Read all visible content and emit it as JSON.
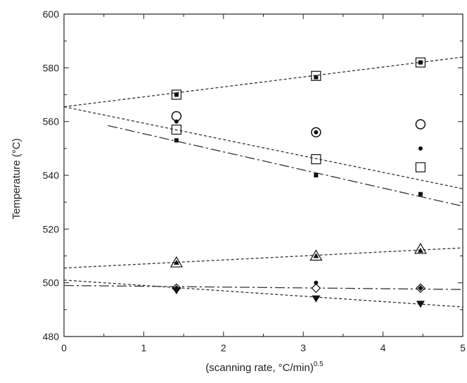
{
  "chart_data": {
    "type": "scatter",
    "title": "",
    "xlabel_main": "(scanning rate, °C/min)",
    "xlabel_sup": "0.5",
    "ylabel": "Temperature (°C)",
    "xlim": [
      0,
      5
    ],
    "ylim": [
      480,
      600
    ],
    "xticks": [
      "0",
      "1",
      "2",
      "3",
      "4",
      "5"
    ],
    "yticks": [
      "480",
      "500",
      "520",
      "540",
      "560",
      "580",
      "600"
    ],
    "grid": false,
    "legend": "none",
    "series": [
      {
        "marker": "open-square",
        "points": [
          [
            1.41,
            570
          ],
          [
            3.16,
            577
          ],
          [
            4.47,
            582
          ]
        ]
      },
      {
        "marker": "filled-square",
        "points": [
          [
            1.41,
            570
          ],
          [
            3.16,
            576.5
          ],
          [
            4.47,
            582
          ],
          [
            1.41,
            553
          ],
          [
            3.16,
            540
          ],
          [
            4.47,
            533
          ]
        ]
      },
      {
        "marker": "open-circle",
        "points": [
          [
            1.41,
            562
          ],
          [
            3.16,
            556
          ],
          [
            4.47,
            559
          ]
        ]
      },
      {
        "marker": "filled-circle",
        "points": [
          [
            1.41,
            560
          ],
          [
            3.16,
            556
          ],
          [
            4.47,
            550
          ],
          [
            3.16,
            500
          ]
        ]
      },
      {
        "marker": "open-square",
        "points": [
          [
            1.41,
            557
          ],
          [
            3.16,
            546
          ],
          [
            4.47,
            543
          ]
        ]
      },
      {
        "marker": "open-triangle",
        "points": [
          [
            1.41,
            507.5
          ],
          [
            3.16,
            510
          ],
          [
            4.47,
            512.5
          ]
        ]
      },
      {
        "marker": "filled-triangle",
        "points": [
          [
            1.41,
            507.5
          ],
          [
            3.16,
            510
          ],
          [
            4.47,
            512
          ]
        ]
      },
      {
        "marker": "open-diamond",
        "points": [
          [
            1.41,
            498
          ],
          [
            3.16,
            498
          ],
          [
            4.47,
            498
          ]
        ]
      },
      {
        "marker": "filled-diamond",
        "points": [
          [
            1.41,
            498
          ],
          [
            4.47,
            498
          ]
        ]
      },
      {
        "marker": "filled-down-triangle",
        "points": [
          [
            1.41,
            497
          ],
          [
            3.16,
            494
          ],
          [
            4.47,
            492
          ]
        ]
      }
    ],
    "lines": [
      {
        "style": "dotted",
        "points": [
          [
            0,
            565.5
          ],
          [
            5,
            584
          ]
        ]
      },
      {
        "style": "dotted",
        "points": [
          [
            0,
            565.5
          ],
          [
            5,
            535
          ]
        ]
      },
      {
        "style": "dashed",
        "points": [
          [
            0.55,
            558.5
          ],
          [
            5,
            528.5
          ]
        ]
      },
      {
        "style": "dotted",
        "points": [
          [
            0,
            505.5
          ],
          [
            5,
            513
          ]
        ]
      },
      {
        "style": "dashed",
        "points": [
          [
            0,
            499
          ],
          [
            5,
            497.5
          ]
        ]
      },
      {
        "style": "dotted",
        "points": [
          [
            0,
            501
          ],
          [
            5,
            491
          ]
        ]
      }
    ]
  }
}
